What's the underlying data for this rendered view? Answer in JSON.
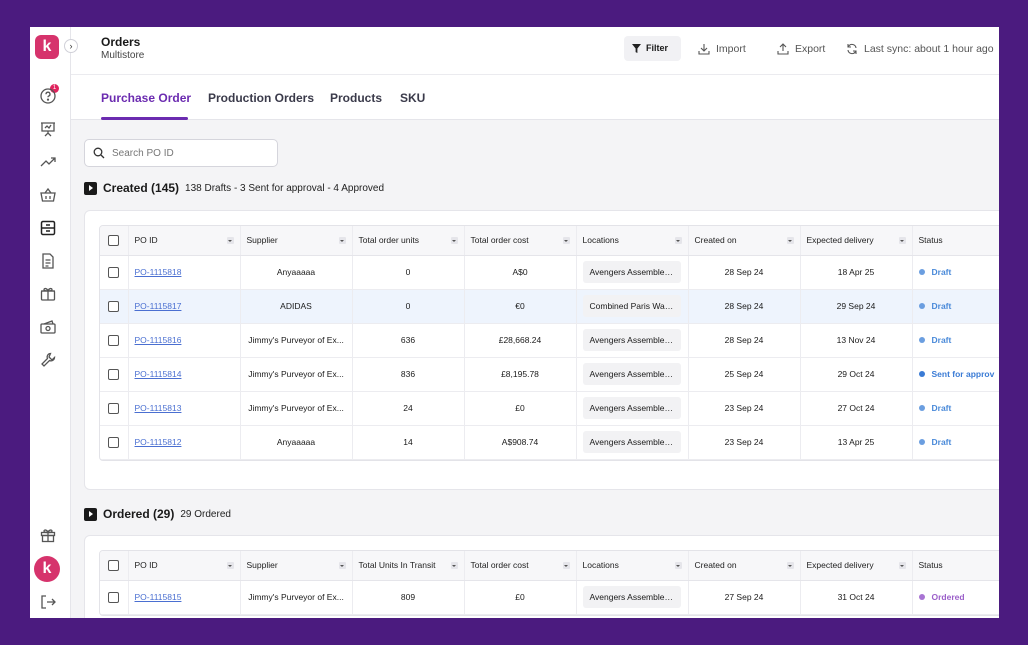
{
  "app": {
    "logo_letter": "k",
    "avatar_letter": "k",
    "notification_count": "1",
    "brand_color": "#d6336c",
    "accent_color": "#6b2bb0"
  },
  "header": {
    "title": "Orders",
    "subtitle": "Multistore",
    "filter_label": "Filter",
    "import_label": "Import",
    "export_label": "Export",
    "sync_label": "Last sync: about 1 hour ago"
  },
  "sidebar": {
    "icons": [
      "help-icon",
      "presentation-icon",
      "trending-icon",
      "basket-icon",
      "orders-icon",
      "document-icon",
      "box-icon",
      "money-icon",
      "wrench-icon",
      "gift-icon",
      "logout-icon"
    ]
  },
  "tabs": [
    "Purchase Order",
    "Production Orders",
    "Products",
    "SKU"
  ],
  "search": {
    "placeholder": "Search PO ID"
  },
  "created": {
    "title": "Created (145)",
    "summary": "138 Drafts - 3 Sent for approval - 4 Approved",
    "columns": [
      "PO ID",
      "Supplier",
      "Total order units",
      "Total order cost",
      "Locations",
      "Created on",
      "Expected delivery",
      "Status"
    ],
    "rows": [
      {
        "po": "PO-1115818",
        "supplier": "Anyaaaaa",
        "units": "0",
        "cost": "A$0",
        "location": "Avengers Assemble ...",
        "created": "28 Sep 24",
        "expected": "18 Apr 25",
        "status": "Draft"
      },
      {
        "po": "PO-1115817",
        "supplier": "ADIDAS",
        "units": "0",
        "cost": "€0",
        "location": "Combined Paris Ware...",
        "created": "28 Sep 24",
        "expected": "29 Sep 24",
        "status": "Draft"
      },
      {
        "po": "PO-1115816",
        "supplier": "Jimmy's Purveyor of Ex...",
        "units": "636",
        "cost": "£28,668.24",
        "location": "Avengers Assemble ...",
        "created": "28 Sep 24",
        "expected": "13 Nov 24",
        "status": "Draft"
      },
      {
        "po": "PO-1115814",
        "supplier": "Jimmy's Purveyor of Ex...",
        "units": "836",
        "cost": "£8,195.78",
        "location": "Avengers Assemble ...",
        "created": "25 Sep 24",
        "expected": "29 Oct 24",
        "status": "Sent for approv"
      },
      {
        "po": "PO-1115813",
        "supplier": "Jimmy's Purveyor of Ex...",
        "units": "24",
        "cost": "£0",
        "location": "Avengers Assemble ...",
        "created": "23 Sep 24",
        "expected": "27 Oct 24",
        "status": "Draft"
      },
      {
        "po": "PO-1115812",
        "supplier": "Anyaaaaa",
        "units": "14",
        "cost": "A$908.74",
        "location": "Avengers Assemble ...",
        "created": "23 Sep 24",
        "expected": "13 Apr 25",
        "status": "Draft"
      }
    ]
  },
  "ordered": {
    "title": "Ordered (29)",
    "summary": "29 Ordered",
    "columns": [
      "PO ID",
      "Supplier",
      "Total Units In Transit",
      "Total order cost",
      "Locations",
      "Created on",
      "Expected delivery",
      "Status"
    ],
    "rows": [
      {
        "po": "PO-1115815",
        "supplier": "Jimmy's Purveyor of Ex...",
        "units": "809",
        "cost": "£0",
        "location": "Avengers Assemble ...",
        "created": "27 Sep 24",
        "expected": "31 Oct 24",
        "status": "Ordered"
      }
    ]
  }
}
